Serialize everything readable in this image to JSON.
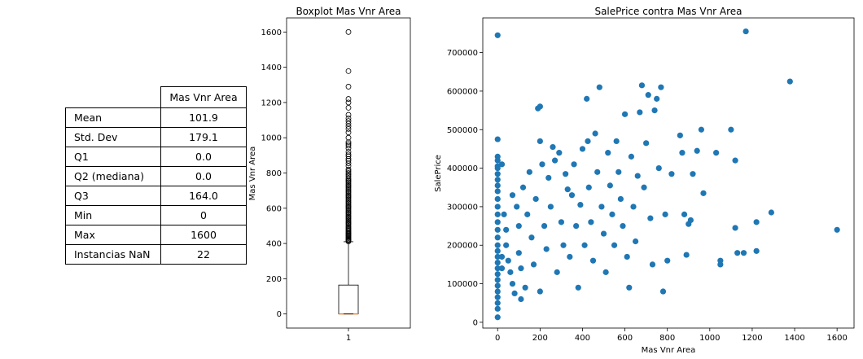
{
  "table": {
    "header": "Mas Vnr Area",
    "rows": [
      {
        "label": "Mean",
        "value": "101.9"
      },
      {
        "label": "Std. Dev",
        "value": "179.1"
      },
      {
        "label": "Q1",
        "value": "0.0"
      },
      {
        "label": "Q2 (mediana)",
        "value": "0.0"
      },
      {
        "label": "Q3",
        "value": "164.0"
      },
      {
        "label": "Min",
        "value": "0"
      },
      {
        "label": "Max",
        "value": "1600"
      },
      {
        "label": "Instancias NaN",
        "value": "22"
      }
    ]
  },
  "chart_data": [
    {
      "type": "boxplot",
      "title": "Boxplot Mas Vnr Area",
      "ylabel": "Mas Vnr Area",
      "xticks": [
        "1"
      ],
      "ylim": [
        -80,
        1680
      ],
      "yticks": [
        0,
        200,
        400,
        600,
        800,
        1000,
        1200,
        1400,
        1600
      ],
      "box": {
        "q1": 0,
        "median": 0,
        "q3": 164,
        "whisker_low": 0,
        "whisker_high": 410
      },
      "fliers": [
        412,
        415,
        420,
        424,
        430,
        435,
        440,
        445,
        450,
        455,
        460,
        466,
        472,
        478,
        485,
        492,
        500,
        508,
        515,
        522,
        530,
        538,
        545,
        552,
        560,
        568,
        575,
        583,
        590,
        598,
        605,
        612,
        620,
        628,
        635,
        643,
        650,
        658,
        665,
        672,
        680,
        688,
        695,
        703,
        710,
        718,
        725,
        732,
        740,
        748,
        755,
        762,
        770,
        780,
        790,
        800,
        810,
        820,
        840,
        855,
        870,
        880,
        895,
        905,
        920,
        940,
        955,
        965,
        975,
        1000,
        1030,
        1050,
        1065,
        1080,
        1095,
        1110,
        1130,
        1170,
        1200,
        1220,
        1290,
        1378,
        1600
      ],
      "colors": {
        "box": "#000000",
        "median": "#ff7f0e"
      }
    },
    {
      "type": "scatter",
      "title": "SalePrice contra Mas Vnr Area",
      "xlabel": "Mas Vnr Area",
      "ylabel": "SalePrice",
      "xlim": [
        -70,
        1680
      ],
      "ylim": [
        -15000,
        790000
      ],
      "xticks": [
        0,
        200,
        400,
        600,
        800,
        1000,
        1200,
        1400,
        1600
      ],
      "yticks": [
        0,
        100000,
        200000,
        300000,
        400000,
        500000,
        600000,
        700000
      ],
      "color": "#1f77b4",
      "points": [
        [
          0,
          745000
        ],
        [
          1170,
          755000
        ],
        [
          1378,
          625000
        ],
        [
          1600,
          240000
        ],
        [
          0,
          475000
        ],
        [
          0,
          430000
        ],
        [
          0,
          420000
        ],
        [
          0,
          405000
        ],
        [
          0,
          400000
        ],
        [
          0,
          385000
        ],
        [
          0,
          370000
        ],
        [
          0,
          355000
        ],
        [
          0,
          340000
        ],
        [
          0,
          320000
        ],
        [
          0,
          300000
        ],
        [
          0,
          280000
        ],
        [
          0,
          260000
        ],
        [
          0,
          240000
        ],
        [
          0,
          220000
        ],
        [
          0,
          200000
        ],
        [
          0,
          185000
        ],
        [
          0,
          170000
        ],
        [
          0,
          155000
        ],
        [
          0,
          140000
        ],
        [
          0,
          125000
        ],
        [
          0,
          110000
        ],
        [
          0,
          95000
        ],
        [
          0,
          80000
        ],
        [
          0,
          65000
        ],
        [
          0,
          50000
        ],
        [
          0,
          35000
        ],
        [
          0,
          13000
        ],
        [
          20,
          410000
        ],
        [
          20,
          170000
        ],
        [
          20,
          140000
        ],
        [
          30,
          280000
        ],
        [
          40,
          240000
        ],
        [
          40,
          200000
        ],
        [
          50,
          160000
        ],
        [
          60,
          130000
        ],
        [
          70,
          330000
        ],
        [
          70,
          100000
        ],
        [
          80,
          75000
        ],
        [
          90,
          300000
        ],
        [
          100,
          250000
        ],
        [
          100,
          180000
        ],
        [
          110,
          140000
        ],
        [
          110,
          60000
        ],
        [
          120,
          350000
        ],
        [
          130,
          90000
        ],
        [
          140,
          280000
        ],
        [
          150,
          390000
        ],
        [
          160,
          220000
        ],
        [
          170,
          150000
        ],
        [
          180,
          320000
        ],
        [
          190,
          555000
        ],
        [
          200,
          560000
        ],
        [
          200,
          470000
        ],
        [
          200,
          80000
        ],
        [
          210,
          410000
        ],
        [
          220,
          250000
        ],
        [
          230,
          190000
        ],
        [
          240,
          375000
        ],
        [
          250,
          300000
        ],
        [
          260,
          455000
        ],
        [
          270,
          420000
        ],
        [
          280,
          130000
        ],
        [
          290,
          440000
        ],
        [
          300,
          260000
        ],
        [
          310,
          200000
        ],
        [
          320,
          385000
        ],
        [
          330,
          345000
        ],
        [
          340,
          170000
        ],
        [
          350,
          330000
        ],
        [
          360,
          410000
        ],
        [
          370,
          250000
        ],
        [
          380,
          90000
        ],
        [
          390,
          305000
        ],
        [
          400,
          450000
        ],
        [
          410,
          200000
        ],
        [
          420,
          580000
        ],
        [
          425,
          470000
        ],
        [
          430,
          350000
        ],
        [
          440,
          260000
        ],
        [
          450,
          160000
        ],
        [
          460,
          490000
        ],
        [
          470,
          390000
        ],
        [
          480,
          610000
        ],
        [
          490,
          300000
        ],
        [
          500,
          230000
        ],
        [
          510,
          130000
        ],
        [
          520,
          440000
        ],
        [
          530,
          355000
        ],
        [
          540,
          280000
        ],
        [
          550,
          200000
        ],
        [
          560,
          470000
        ],
        [
          570,
          390000
        ],
        [
          580,
          320000
        ],
        [
          590,
          250000
        ],
        [
          600,
          540000
        ],
        [
          610,
          170000
        ],
        [
          620,
          90000
        ],
        [
          630,
          430000
        ],
        [
          640,
          300000
        ],
        [
          650,
          210000
        ],
        [
          660,
          380000
        ],
        [
          670,
          545000
        ],
        [
          680,
          615000
        ],
        [
          690,
          350000
        ],
        [
          700,
          465000
        ],
        [
          710,
          590000
        ],
        [
          720,
          270000
        ],
        [
          730,
          150000
        ],
        [
          740,
          550000
        ],
        [
          750,
          580000
        ],
        [
          760,
          400000
        ],
        [
          770,
          610000
        ],
        [
          780,
          80000
        ],
        [
          790,
          280000
        ],
        [
          800,
          160000
        ],
        [
          820,
          385000
        ],
        [
          860,
          485000
        ],
        [
          870,
          440000
        ],
        [
          880,
          280000
        ],
        [
          890,
          175000
        ],
        [
          900,
          255000
        ],
        [
          910,
          265000
        ],
        [
          920,
          385000
        ],
        [
          940,
          445000
        ],
        [
          960,
          500000
        ],
        [
          970,
          335000
        ],
        [
          1030,
          440000
        ],
        [
          1050,
          160000
        ],
        [
          1050,
          150000
        ],
        [
          1100,
          500000
        ],
        [
          1120,
          420000
        ],
        [
          1120,
          245000
        ],
        [
          1130,
          180000
        ],
        [
          1160,
          180000
        ],
        [
          1220,
          260000
        ],
        [
          1220,
          185000
        ],
        [
          1290,
          285000
        ]
      ]
    }
  ]
}
